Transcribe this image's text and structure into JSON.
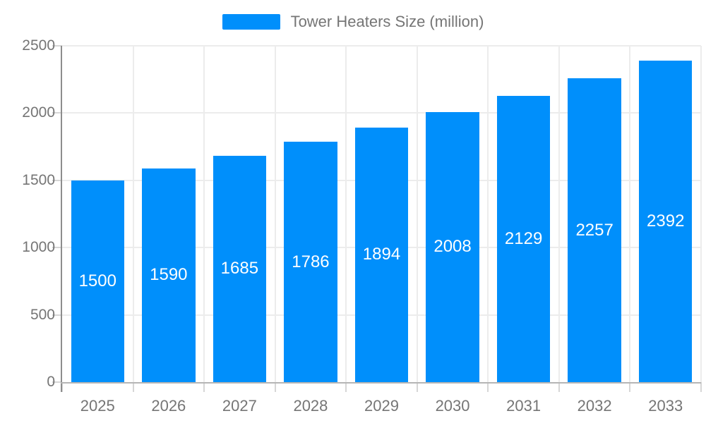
{
  "legend": {
    "label": "Tower Heaters Size (million)"
  },
  "chart_data": {
    "type": "bar",
    "title": "",
    "xlabel": "",
    "ylabel": "",
    "categories": [
      "2025",
      "2026",
      "2027",
      "2028",
      "2029",
      "2030",
      "2031",
      "2032",
      "2033"
    ],
    "series": [
      {
        "name": "Tower Heaters Size (million)",
        "values": [
          1500,
          1590,
          1685,
          1786,
          1894,
          2008,
          2129,
          2257,
          2392
        ]
      }
    ],
    "ylim": [
      0,
      2500
    ],
    "yticks": [
      0,
      500,
      1000,
      1500,
      2000,
      2500
    ],
    "grid": true,
    "legend_position": "top",
    "data_labels": "inside-center",
    "colors": {
      "bar": "#008FFB",
      "data_label_text": "#ffffff",
      "axis_text": "#757575",
      "grid_line": "#ececec",
      "tick_line": "#d6d6d6",
      "y_axis_line": "#8d8d8d",
      "x_axis_line": "#b5b5b5",
      "background": "#ffffff"
    }
  }
}
